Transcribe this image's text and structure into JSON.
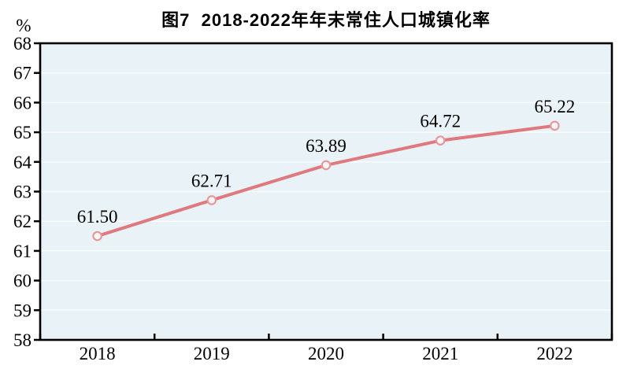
{
  "chart_data": {
    "type": "line",
    "title": "图7  2018-2022年年末常住人口城镇化率",
    "categories": [
      "2018",
      "2019",
      "2020",
      "2021",
      "2022"
    ],
    "values": [
      61.5,
      62.71,
      63.89,
      64.72,
      65.22
    ],
    "data_labels": [
      "61.50",
      "62.71",
      "63.89",
      "64.72",
      "65.22"
    ],
    "xlabel": "",
    "ylabel": "%",
    "ylim": [
      58,
      68
    ],
    "ytick_step": 1,
    "yticks": [
      "58",
      "59",
      "60",
      "61",
      "62",
      "63",
      "64",
      "65",
      "66",
      "67",
      "68"
    ],
    "grid": "horizontal",
    "legend": "none",
    "colors": {
      "line": "#e0797e",
      "marker_fill": "#fdf6f6",
      "marker_stroke": "#e8979b",
      "plot_bg": "#e9f2f6",
      "grid_line": "#f9fcfd",
      "axis": "#000000",
      "text": "#000000"
    }
  }
}
